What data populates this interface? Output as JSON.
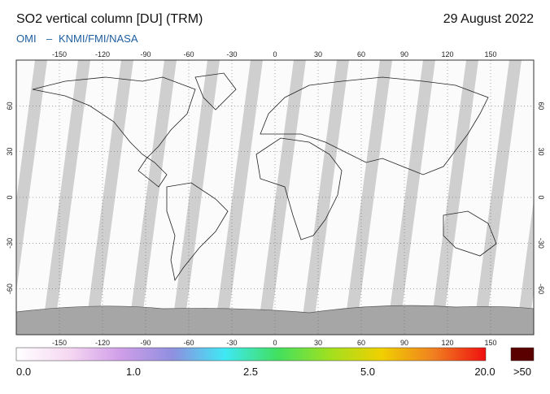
{
  "header": {
    "title": "SO2 vertical column [DU] (TRM)",
    "date": "29 August 2022",
    "credit_left": "OMI",
    "credit_sep": "–",
    "credit_right": "KNMI/FMI/NASA"
  },
  "map": {
    "lonlim": [
      -180,
      180
    ],
    "latlim": [
      -90,
      90
    ],
    "lon_ticks": [
      -150,
      -120,
      -90,
      -60,
      -30,
      0,
      30,
      60,
      90,
      120,
      150
    ],
    "lat_ticks": [
      -60,
      -30,
      0,
      30,
      60
    ]
  },
  "colorbar": {
    "labels": [
      "0.0",
      "1.0",
      "2.5",
      "5.0",
      "20.0"
    ],
    "overflow_label": ">50",
    "colors": [
      "#ffffff",
      "#f6d8f2",
      "#cf9ee8",
      "#8f8fe0",
      "#3fe8f4",
      "#40e060",
      "#a0e020",
      "#f0d000",
      "#f08020",
      "#f01010"
    ],
    "overflow_color": "#5a0000"
  }
}
